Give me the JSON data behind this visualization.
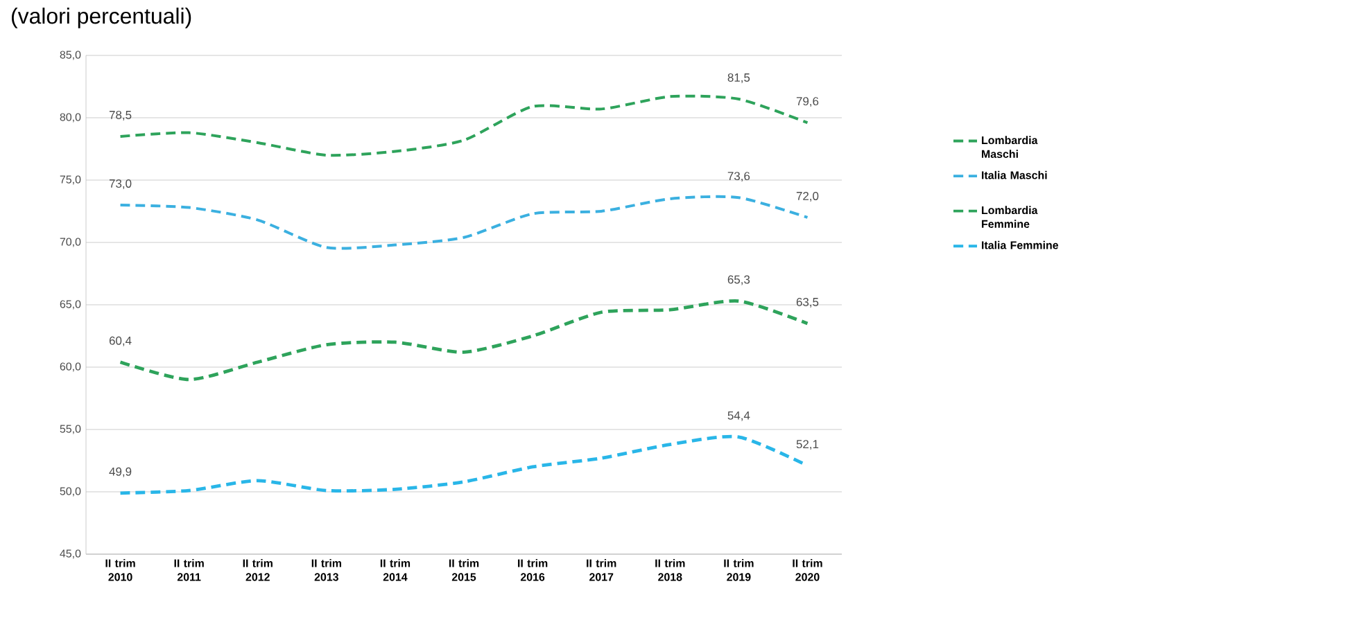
{
  "chart_data": {
    "type": "line",
    "title": "(valori percentuali)",
    "categories": [
      "II trim 2010",
      "II trim 2011",
      "II trim 2012",
      "II trim 2013",
      "II trim 2014",
      "II trim 2015",
      "II trim 2016",
      "II trim 2017",
      "II trim 2018",
      "II trim 2019",
      "II trim 2020"
    ],
    "series": [
      {
        "name": "Lombardia Maschi",
        "color": "#2ea35b",
        "line_style": "dashed",
        "values": [
          78.5,
          78.8,
          78.0,
          77.0,
          77.3,
          78.2,
          80.9,
          80.7,
          81.7,
          81.5,
          79.6
        ],
        "value_labels": [
          "78,5",
          null,
          null,
          null,
          null,
          null,
          null,
          null,
          null,
          "81,5",
          "79,6"
        ]
      },
      {
        "name": "Italia Maschi",
        "color": "#3bb0e0",
        "line_style": "dashed",
        "values": [
          73.0,
          72.8,
          71.8,
          69.6,
          69.8,
          70.4,
          72.3,
          72.5,
          73.5,
          73.6,
          72.0
        ],
        "value_labels": [
          "73,0",
          null,
          null,
          null,
          null,
          null,
          null,
          null,
          null,
          "73,6",
          "72,0"
        ]
      },
      {
        "name": "Lombardia Femmine",
        "color": "#2ea35b",
        "line_style": "dashed",
        "values": [
          60.4,
          59.0,
          60.4,
          61.8,
          62.0,
          61.2,
          62.5,
          64.4,
          64.6,
          65.3,
          63.5
        ],
        "value_labels": [
          "60,4",
          null,
          null,
          null,
          null,
          null,
          null,
          null,
          null,
          "65,3",
          "63,5"
        ]
      },
      {
        "name": "Italia Femmine",
        "color": "#29b6e8",
        "line_style": "dashed",
        "values": [
          49.9,
          50.1,
          50.9,
          50.1,
          50.2,
          50.8,
          52.0,
          52.7,
          53.8,
          54.4,
          52.1
        ],
        "value_labels": [
          "49,9",
          null,
          null,
          null,
          null,
          null,
          null,
          null,
          null,
          "54,4",
          "52,1"
        ]
      }
    ],
    "ylim": [
      45,
      85
    ],
    "yticks": [
      {
        "value": 45,
        "label": "45,0"
      },
      {
        "value": 50,
        "label": "50,0"
      },
      {
        "value": 55,
        "label": "55,0"
      },
      {
        "value": 60,
        "label": "60,0"
      },
      {
        "value": 65,
        "label": "65,0"
      },
      {
        "value": 70,
        "label": "70,0"
      },
      {
        "value": 75,
        "label": "75,0"
      },
      {
        "value": 80,
        "label": "80,0"
      },
      {
        "value": 85,
        "label": "85,0"
      }
    ],
    "grid": "y",
    "legend": "right"
  }
}
